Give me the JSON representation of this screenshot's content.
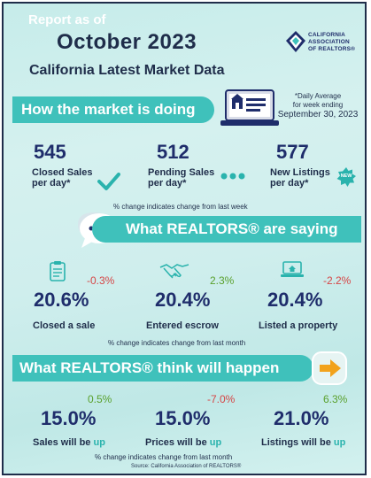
{
  "header": {
    "report_as_of": "Report as of",
    "month": "October 2023",
    "subtitle": "California Latest Market Data",
    "logo_lines": [
      "CALIFORNIA",
      "ASSOCIATION",
      "OF REALTORS®"
    ]
  },
  "section1": {
    "title": "How the market is doing",
    "note_line1": "*Daily Average",
    "note_line2": "for week ending",
    "note_date": "September 30, 2023",
    "metrics": [
      {
        "value": "545",
        "label_line1": "Closed Sales",
        "label_line2": "per day*"
      },
      {
        "value": "512",
        "label_line1": "Pending Sales",
        "label_line2": "per day*"
      },
      {
        "value": "577",
        "label_line1": "New Listings",
        "label_line2": "per day*",
        "badge": "NEW"
      }
    ],
    "footnote": "% change indicates change from last week"
  },
  "section2": {
    "title": "What REALTORS® are saying",
    "metrics": [
      {
        "value": "20.6%",
        "change": "-0.3%",
        "label": "Closed a sale"
      },
      {
        "value": "20.4%",
        "change": "2.3%",
        "label": "Entered escrow"
      },
      {
        "value": "20.4%",
        "change": "-2.2%",
        "label": "Listed a property"
      }
    ],
    "footnote": "% change indicates change from last month"
  },
  "section3": {
    "title": "What REALTORS® think will happen",
    "metrics": [
      {
        "value": "15.0%",
        "change": "0.5%",
        "label_prefix": "Sales will be ",
        "label_emph": "up"
      },
      {
        "value": "15.0%",
        "change": "-7.0%",
        "label_prefix": "Prices will be ",
        "label_emph": "up"
      },
      {
        "value": "21.0%",
        "change": "6.3%",
        "label_prefix": "Listings will be ",
        "label_emph": "up"
      }
    ],
    "footnote": "% change indicates change from last month"
  },
  "source": "Source: California Association of REALTORS®",
  "colors": {
    "teal": "#3fc1bb",
    "navy": "#1f2d6b",
    "positive": "#5aa02c",
    "negative": "#d64545"
  }
}
